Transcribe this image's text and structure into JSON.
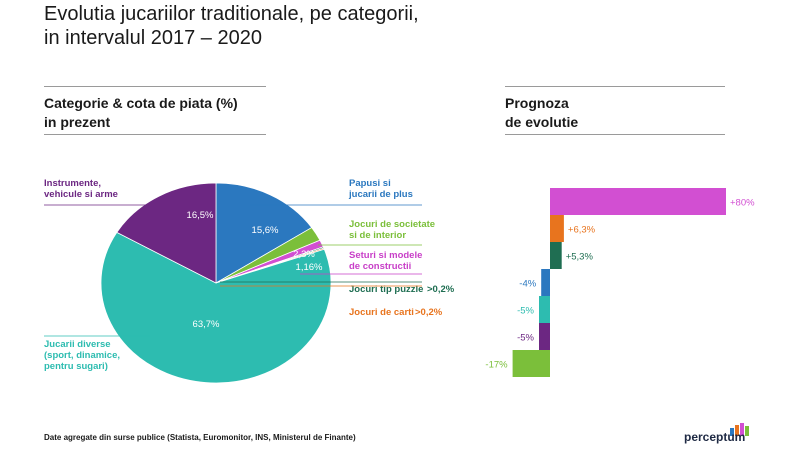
{
  "title": {
    "line1": "Evolutia jucariilor traditionale, pe categorii,",
    "line2": "in intervalul 2017 – 2020"
  },
  "left_panel": {
    "line1": "Categorie & cota de piata (%)",
    "line2": "in prezent"
  },
  "right_panel": {
    "line1": "Prognoza",
    "line2": "de evolutie"
  },
  "source": "Date agregate din surse publice (Statista, Euromonitor, INS, Ministerul de Finante)",
  "brand": "perceptum",
  "chart_data": [
    {
      "type": "pie",
      "title": "Categorie & cota de piata (%) in prezent",
      "slices": [
        {
          "id": "papusi",
          "label": [
            "Papusi si",
            "jucarii de plus"
          ],
          "value": 15.6,
          "value_label": "15,6%",
          "color": "#2b78bf",
          "label_color": "#2b78bf"
        },
        {
          "id": "societate",
          "label": [
            "Jocuri de societate",
            "si de interior"
          ],
          "value": 2.3,
          "value_label": "2,3%",
          "color": "#7bbf3a",
          "label_color": "#7bbf3a"
        },
        {
          "id": "seturi",
          "label": [
            "Seturi si modele",
            "de constructii"
          ],
          "value": 1.16,
          "value_label": "1,16%",
          "color": "#d24fd2",
          "label_color": "#c83fc8"
        },
        {
          "id": "puzzle",
          "label": [
            "Jocuri tip puzzle"
          ],
          "value": 0.2,
          "value_label": ">0,2%",
          "color": "#1f6e52",
          "label_color": "#1f6e52"
        },
        {
          "id": "carti",
          "label": [
            "Jocuri de carti"
          ],
          "value": 0.2,
          "value_label": ">0,2%",
          "color": "#e8741e",
          "label_color": "#e8741e"
        },
        {
          "id": "diverse",
          "label": [
            "Jucarii diverse",
            "(sport, dinamice,",
            "pentru sugari)"
          ],
          "value": 63.7,
          "value_label": "63,7%",
          "color": "#2dbcb0",
          "label_color": "#2dbcb0"
        },
        {
          "id": "instrumente",
          "label": [
            "Instrumente,",
            "vehicule si arme"
          ],
          "value": 16.5,
          "value_label": "16,5%",
          "color": "#6c2782",
          "label_color": "#6c2782"
        }
      ]
    },
    {
      "type": "bar",
      "orientation": "horizontal",
      "title": "Prognoza de evolutie",
      "unit": "%",
      "categories": [
        "Seturi si modele de constructii",
        "Jocuri de carti",
        "Jocuri tip puzzle",
        "Papusi si jucarii de plus",
        "Jucarii diverse",
        "Instrumente, vehicule si arme",
        "Jocuri de societate si de interior"
      ],
      "values": [
        80,
        6.3,
        5.3,
        -4,
        -5,
        -5,
        -17
      ],
      "value_labels": [
        "+80%",
        "+6,3%",
        "+5,3%",
        "-4%",
        "-5%",
        "-5%",
        "-17%"
      ],
      "colors": [
        "#d24fd2",
        "#e8741e",
        "#1f6e52",
        "#2b78bf",
        "#2dbcb0",
        "#6c2782",
        "#7bbf3a"
      ]
    }
  ]
}
